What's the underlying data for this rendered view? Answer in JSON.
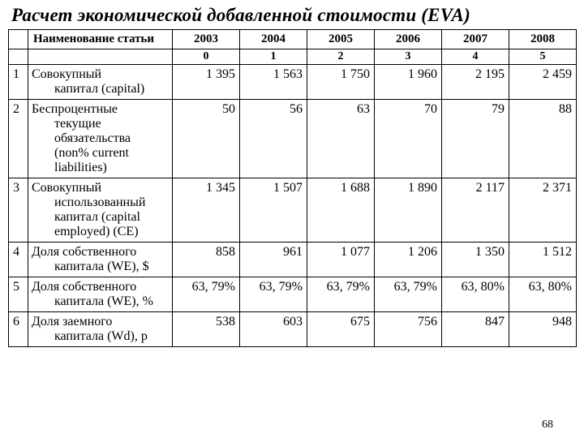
{
  "title": "Расчет экономической добавленной стоимости (EVA)",
  "header": {
    "name_col": "Наименование статьи",
    "years": [
      "2003",
      "2004",
      "2005",
      "2006",
      "2007",
      "2008"
    ],
    "subindex": [
      "0",
      "1",
      "2",
      "3",
      "4",
      "5"
    ]
  },
  "rows": [
    {
      "n": "1",
      "name_line1": "Совокупный",
      "name_rest": "капитал (capital)",
      "vals": [
        "1 395",
        "1 563",
        "1 750",
        "1 960",
        "2 195",
        "2 459"
      ]
    },
    {
      "n": "2",
      "name_line1": "Беспроцентные",
      "name_rest": "текущие обязательства (non% current liabilities)",
      "vals": [
        "50",
        "56",
        "63",
        "70",
        "79",
        "88"
      ]
    },
    {
      "n": "3",
      "name_line1": "Совокупный",
      "name_rest": "использованный капитал (capital employed) (CE)",
      "vals": [
        "1 345",
        "1 507",
        "1 688",
        "1 890",
        "2 117",
        "2 371"
      ]
    },
    {
      "n": "4",
      "name_line1": "Доля собственного",
      "name_rest": "капитала (WЕ), $",
      "vals": [
        "858",
        "961",
        "1 077",
        "1 206",
        "1 350",
        "1 512"
      ]
    },
    {
      "n": "5",
      "name_line1": "Доля собственного",
      "name_rest": "капитала (WЕ), %",
      "vals": [
        "63, 79%",
        "63, 79%",
        "63, 79%",
        "63, 79%",
        "63, 80%",
        "63, 80%"
      ]
    },
    {
      "n": "6",
      "name_line1": "Доля заемного",
      "name_rest": "капитала (Wd), р",
      "vals": [
        "538",
        "603",
        "675",
        "756",
        "847",
        "948"
      ]
    }
  ],
  "page_number": "68"
}
